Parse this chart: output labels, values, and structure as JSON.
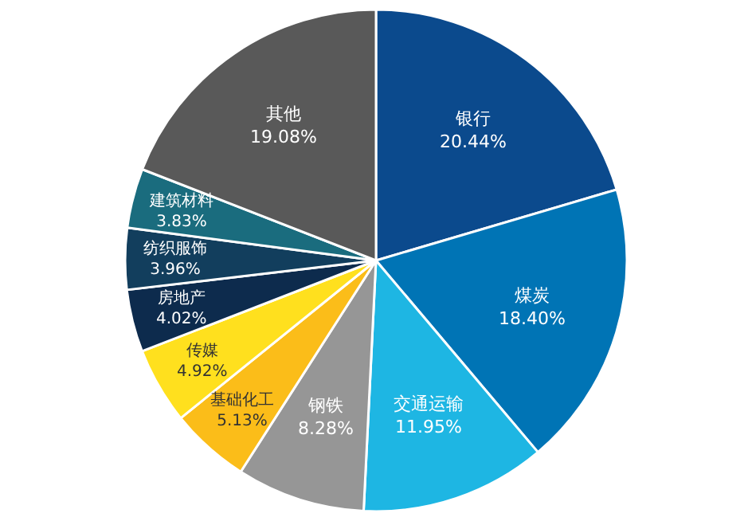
{
  "chart_data": {
    "type": "pie",
    "categories": [
      "银行",
      "煤炭",
      "交通运输",
      "钢铁",
      "基础化工",
      "传媒",
      "房地产",
      "纺织服饰",
      "建筑材料",
      "其他"
    ],
    "values": [
      20.44,
      18.4,
      11.95,
      8.28,
      5.13,
      4.92,
      4.02,
      3.96,
      3.83,
      19.08
    ],
    "value_labels": [
      "20.44%",
      "18.40%",
      "11.95%",
      "8.28%",
      "5.13%",
      "4.92%",
      "4.02%",
      "3.96%",
      "3.83%",
      "19.08%"
    ],
    "colors": [
      "#0b4a8d",
      "#0074b5",
      "#1eb6e3",
      "#969696",
      "#fbbd19",
      "#ffe01e",
      "#0d2b4d",
      "#123e5d",
      "#1a6c7e",
      "#595959"
    ],
    "legend": false
  }
}
